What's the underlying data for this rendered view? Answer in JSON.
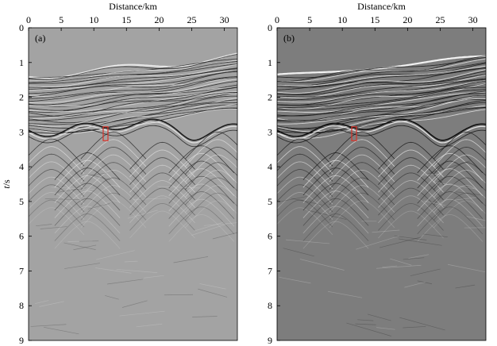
{
  "figure": {
    "panels": [
      {
        "id": "a",
        "label": "(a)",
        "xlabel": "Distance/km",
        "ylabel_italic": "t",
        "ylabel_rest": "/s",
        "show_ylabel": true,
        "x_ticks": [
          0,
          5,
          10,
          15,
          20,
          25,
          30
        ],
        "y_ticks": [
          0,
          1,
          2,
          3,
          4,
          5,
          6,
          7,
          8,
          9
        ],
        "xlim": [
          0,
          32
        ],
        "ylim": [
          0,
          9
        ],
        "background": "#a3a3a3",
        "reflector_color": "#1c1c1c",
        "marker_color": "#d9342b",
        "marker": {
          "x": 11.8,
          "t0": 2.85,
          "t1": 3.25
        }
      },
      {
        "id": "b",
        "label": "(b)",
        "xlabel": "Distance/km",
        "ylabel_italic": "t",
        "ylabel_rest": "/s",
        "show_ylabel": false,
        "x_ticks": [
          0,
          5,
          10,
          15,
          20,
          25,
          30
        ],
        "y_ticks": [
          0,
          1,
          2,
          3,
          4,
          5,
          6,
          7,
          8,
          9
        ],
        "xlim": [
          0,
          32
        ],
        "ylim": [
          0,
          9
        ],
        "background": "#7d7d7d",
        "reflector_color": "#0f0f0f",
        "marker_color": "#d9342b",
        "marker": {
          "x": 11.8,
          "t0": 2.85,
          "t1": 3.25
        }
      }
    ]
  }
}
